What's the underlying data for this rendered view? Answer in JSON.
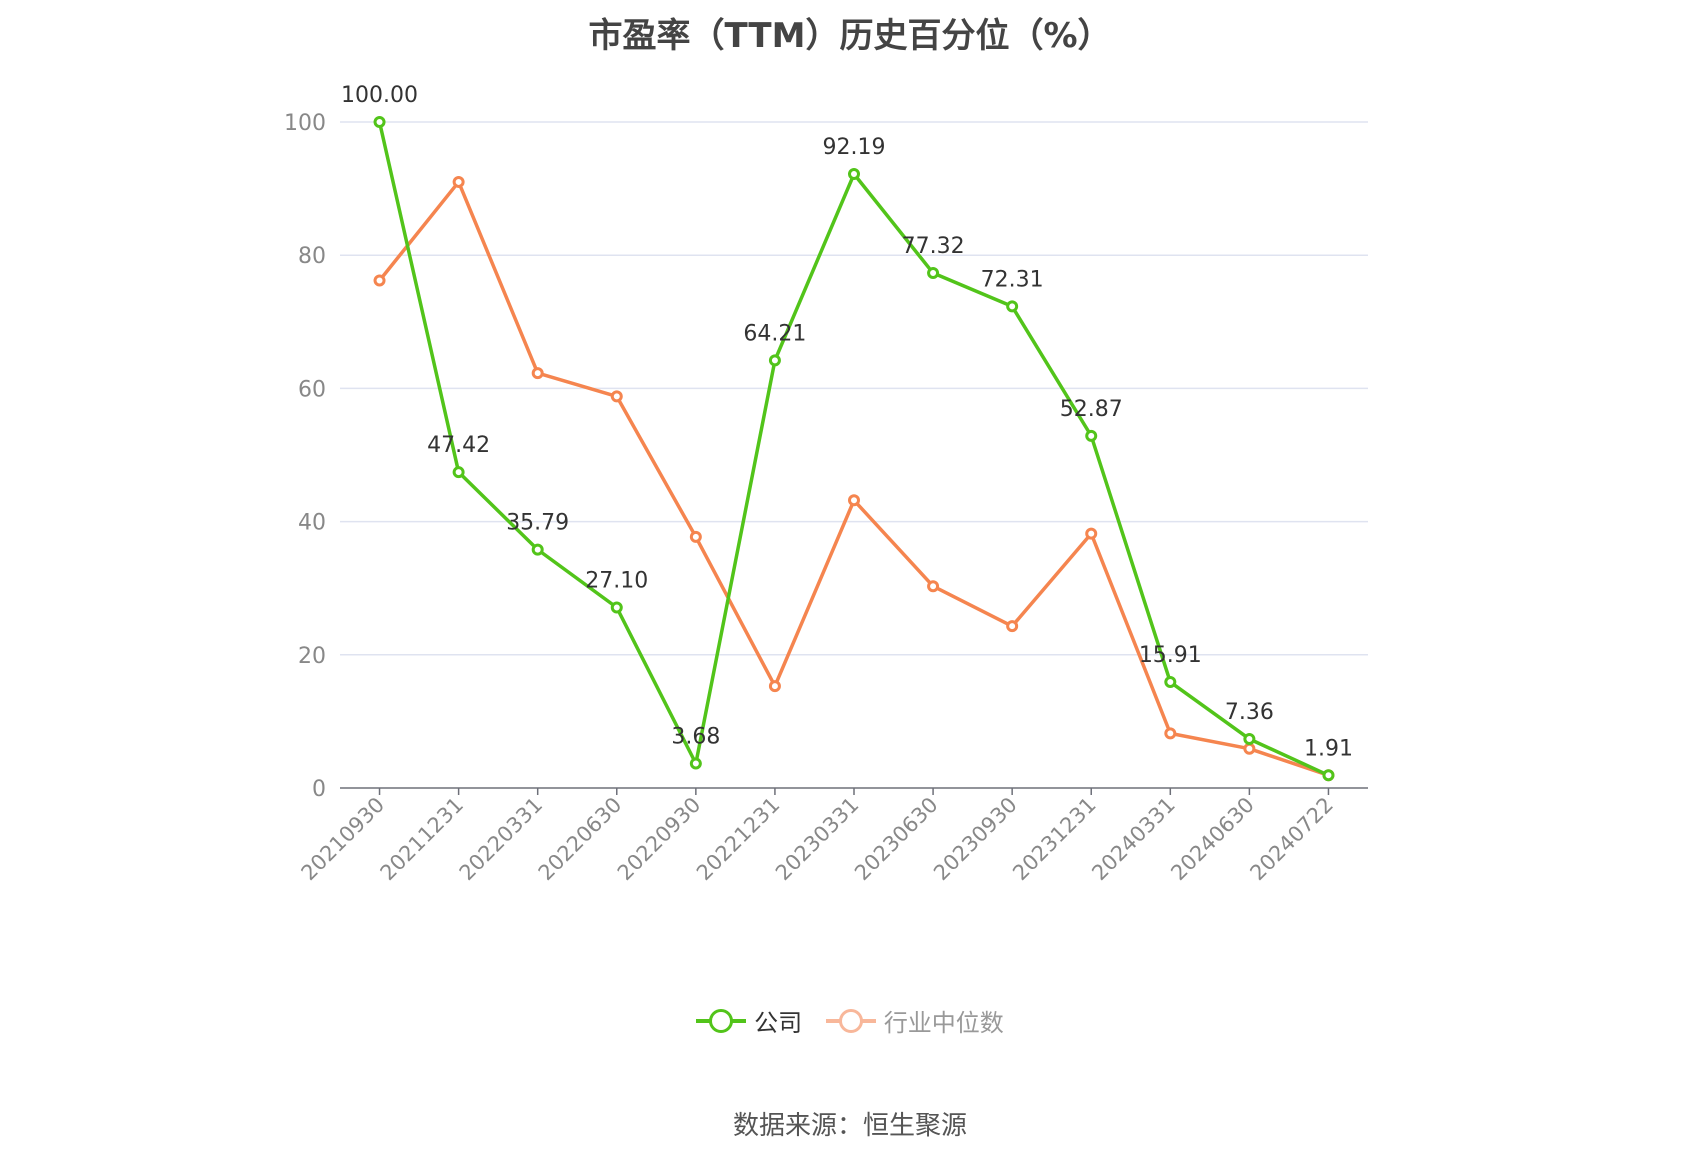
{
  "chart_data": {
    "type": "line",
    "title": "市盈率（TTM）历史百分位（%）",
    "categories": [
      "20210930",
      "20211231",
      "20220331",
      "20220630",
      "20220930",
      "20221231",
      "20230331",
      "20230630",
      "20230930",
      "20231231",
      "20240331",
      "20240630",
      "20240722"
    ],
    "ylim": [
      0,
      100
    ],
    "yticks": [
      0,
      20,
      40,
      60,
      80,
      100
    ],
    "grid": true,
    "legend_position": "bottom",
    "series": [
      {
        "name": "公司",
        "color": "#52c41a",
        "show_labels": true,
        "values": [
          100.0,
          47.42,
          35.79,
          27.1,
          3.68,
          64.21,
          92.19,
          77.32,
          72.31,
          52.87,
          15.91,
          7.36,
          1.91
        ],
        "labels": [
          "100.00",
          "47.42",
          "35.79",
          "27.10",
          "3.68",
          "64.21",
          "92.19",
          "77.32",
          "72.31",
          "52.87",
          "15.91",
          "7.36",
          "1.91"
        ]
      },
      {
        "name": "行业中位数",
        "color": "#f5854f",
        "show_labels": false,
        "values": [
          76.2,
          91.0,
          62.3,
          58.8,
          37.7,
          15.3,
          43.2,
          30.3,
          24.3,
          38.2,
          8.2,
          5.9,
          1.91
        ]
      }
    ]
  },
  "source": "数据来源：恒生聚源"
}
